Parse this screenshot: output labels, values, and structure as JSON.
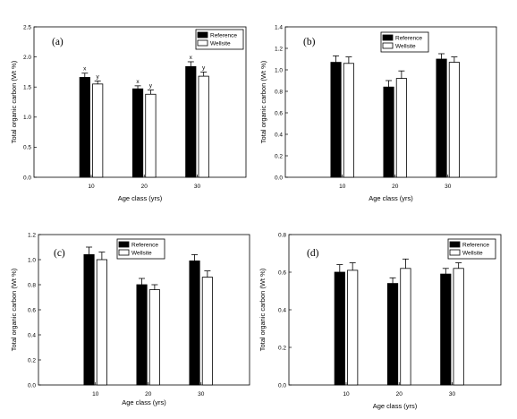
{
  "chart_data": [
    {
      "type": "bar",
      "panel_label": "(a)",
      "categories": [
        "10",
        "20",
        "30"
      ],
      "series": [
        {
          "name": "Reference",
          "values": [
            1.66,
            1.47,
            1.84
          ],
          "errors": [
            0.07,
            0.05,
            0.08
          ],
          "significance": [
            "x",
            "x",
            "x"
          ]
        },
        {
          "name": "Wellsite",
          "values": [
            1.55,
            1.38,
            1.68
          ],
          "errors": [
            0.05,
            0.07,
            0.07
          ],
          "significance": [
            "y",
            "y",
            "y"
          ]
        }
      ],
      "xlabel": "Age class (yrs)",
      "ylabel": "Total organic carbon (Wt %)",
      "ylim": [
        0,
        2.5
      ],
      "yticks": [
        "0.0",
        "0.5",
        "1.0",
        "1.5",
        "2.0",
        "2.5"
      ],
      "legend_position": "top-right",
      "grid": false
    },
    {
      "type": "bar",
      "panel_label": "(b)",
      "categories": [
        "10",
        "20",
        "30"
      ],
      "series": [
        {
          "name": "Reference",
          "values": [
            1.07,
            0.84,
            1.1
          ],
          "errors": [
            0.06,
            0.06,
            0.05
          ]
        },
        {
          "name": "Wellsite",
          "values": [
            1.06,
            0.92,
            1.07
          ],
          "errors": [
            0.06,
            0.07,
            0.05
          ]
        }
      ],
      "xlabel": "Age class (yrs)",
      "ylabel": "Total organic carbon (Wt %)",
      "ylim": [
        0,
        1.4
      ],
      "yticks": [
        "0.0",
        "0.2",
        "0.4",
        "0.6",
        "0.8",
        "1.0",
        "1.2",
        "1.4"
      ],
      "legend_position": "top-right",
      "grid": false
    },
    {
      "type": "bar",
      "panel_label": "(c)",
      "categories": [
        "10",
        "20",
        "30"
      ],
      "series": [
        {
          "name": "Reference",
          "values": [
            1.04,
            0.8,
            0.99
          ],
          "errors": [
            0.06,
            0.05,
            0.05
          ]
        },
        {
          "name": "Wellsite",
          "values": [
            1.0,
            0.76,
            0.86
          ],
          "errors": [
            0.06,
            0.04,
            0.05
          ]
        }
      ],
      "xlabel": "Age class (yrs)",
      "ylabel": "Total organic carbon (Wt %)",
      "ylim": [
        0,
        1.2
      ],
      "yticks": [
        "0.0",
        "0.2",
        "0.4",
        "0.6",
        "0.8",
        "1.0",
        "1.2"
      ],
      "legend_position": "top-right",
      "grid": false
    },
    {
      "type": "bar",
      "panel_label": "(d)",
      "categories": [
        "10",
        "20",
        "30"
      ],
      "series": [
        {
          "name": "Reference",
          "values": [
            0.6,
            0.54,
            0.59
          ],
          "errors": [
            0.04,
            0.03,
            0.03
          ]
        },
        {
          "name": "Wellsite",
          "values": [
            0.61,
            0.62,
            0.62
          ],
          "errors": [
            0.04,
            0.05,
            0.03
          ]
        }
      ],
      "xlabel": "Age class (yrs)",
      "ylabel": "Total organic carbon (Wt %)",
      "ylim": [
        0,
        0.8
      ],
      "yticks": [
        "0.0",
        "0.2",
        "0.4",
        "0.6",
        "0.8"
      ],
      "legend_position": "top-right",
      "grid": false
    }
  ],
  "colors": {
    "reference_fill": "#000000",
    "wellsite_fill": "#ffffff",
    "axis": "#000000"
  }
}
